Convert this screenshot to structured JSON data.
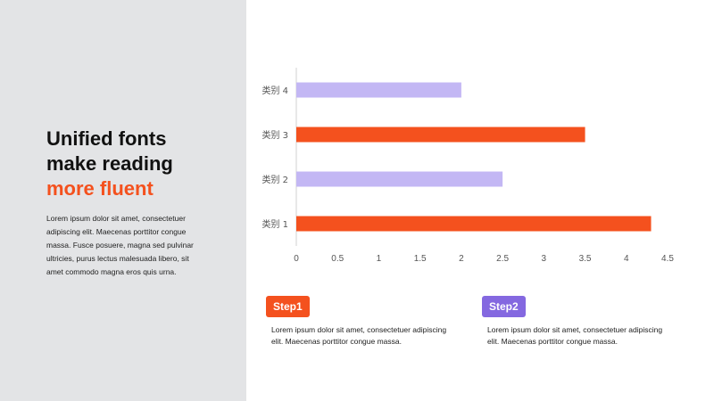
{
  "headline": {
    "line1": "Unified fonts",
    "line2": "make reading",
    "line3": "more fluent"
  },
  "body_text": "Lorem ipsum dolor sit amet, consectetuer adipiscing elit. Maecenas porttitor congue massa. Fusce posuere, magna sed pulvinar ultricies, purus lectus malesuada libero, sit amet commodo magna eros quis urna.",
  "steps": [
    {
      "label": "Step1",
      "color": "#f4511e",
      "text": "Lorem ipsum dolor sit amet, consectetuer adipiscing elit. Maecenas porttitor congue massa."
    },
    {
      "label": "Step2",
      "color": "#8468e0",
      "text": "Lorem ipsum dolor sit amet, consectetuer adipiscing elit. Maecenas porttitor congue massa."
    }
  ],
  "colors": {
    "accent": "#f4511e",
    "purple_light": "#c3b7f4",
    "panel_bg": "#e3e4e6"
  },
  "chart_data": {
    "type": "bar",
    "orientation": "horizontal",
    "title": "",
    "xlabel": "",
    "ylabel": "",
    "categories": [
      "类别 1",
      "类别 2",
      "类别 3",
      "类别 4"
    ],
    "values": [
      4.3,
      2.5,
      3.5,
      2.0
    ],
    "bar_colors": [
      "#f4511e",
      "#c3b7f4",
      "#f4511e",
      "#c3b7f4"
    ],
    "xlim": [
      0,
      4.5
    ],
    "xticks": [
      "0",
      "0.5",
      "1",
      "1.5",
      "2",
      "2.5",
      "3",
      "3.5",
      "4",
      "4.5"
    ],
    "grid": false,
    "legend": "none"
  }
}
